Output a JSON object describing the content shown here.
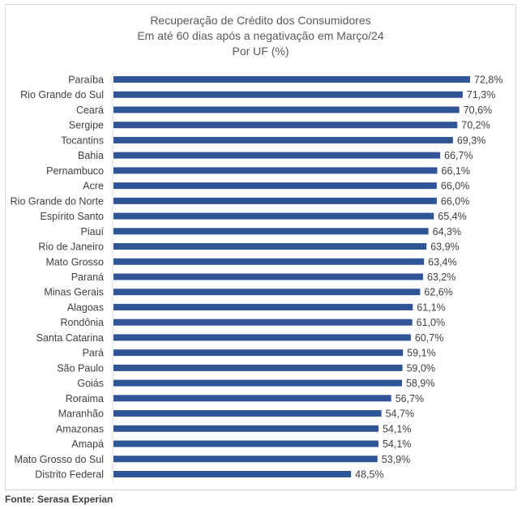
{
  "chart_data": {
    "type": "bar",
    "orientation": "horizontal",
    "title": "Recuperação de Crédito dos Consumidores",
    "subtitle": "Em até 60 dias após a negativação em Março/24",
    "unit_label": "Por UF (%)",
    "categories": [
      "Paraíba",
      "Rio Grande do Sul",
      "Ceará",
      "Sergipe",
      "Tocantins",
      "Bahia",
      "Pernambuco",
      "Acre",
      "Rio Grande do Norte",
      "Espírito Santo",
      "Piauí",
      "Rio de Janeiro",
      "Mato Grosso",
      "Paraná",
      "Minas Gerais",
      "Alagoas",
      "Rondônia",
      "Santa Catarina",
      "Pará",
      "São Paulo",
      "Goiás",
      "Roraima",
      "Maranhão",
      "Amazonas",
      "Amapá",
      "Mato Grosso do Sul",
      "Distrito Federal"
    ],
    "values": [
      72.8,
      71.3,
      70.6,
      70.2,
      69.3,
      66.7,
      66.1,
      66.0,
      66.0,
      65.4,
      64.3,
      63.9,
      63.4,
      63.2,
      62.6,
      61.1,
      61.0,
      60.7,
      59.1,
      59.0,
      58.9,
      56.7,
      54.7,
      54.1,
      54.1,
      53.9,
      48.5
    ],
    "data_labels": [
      "72,8%",
      "71,3%",
      "70,6%",
      "70,2%",
      "69,3%",
      "66,7%",
      "66,1%",
      "66,0%",
      "66,0%",
      "65,4%",
      "64,3%",
      "63,9%",
      "63,4%",
      "63,2%",
      "62,6%",
      "61,1%",
      "61,0%",
      "60,7%",
      "59,1%",
      "59,0%",
      "58,9%",
      "56,7%",
      "54,7%",
      "54,1%",
      "54,1%",
      "53,9%",
      "48,5%"
    ],
    "xlim": [
      0,
      72.8
    ],
    "xlabel": "",
    "ylabel": "",
    "grid": false,
    "legend": "none",
    "bar_color": "#2f5597",
    "label_color": "#404040"
  },
  "source_note": "Fonte: Serasa Experian"
}
